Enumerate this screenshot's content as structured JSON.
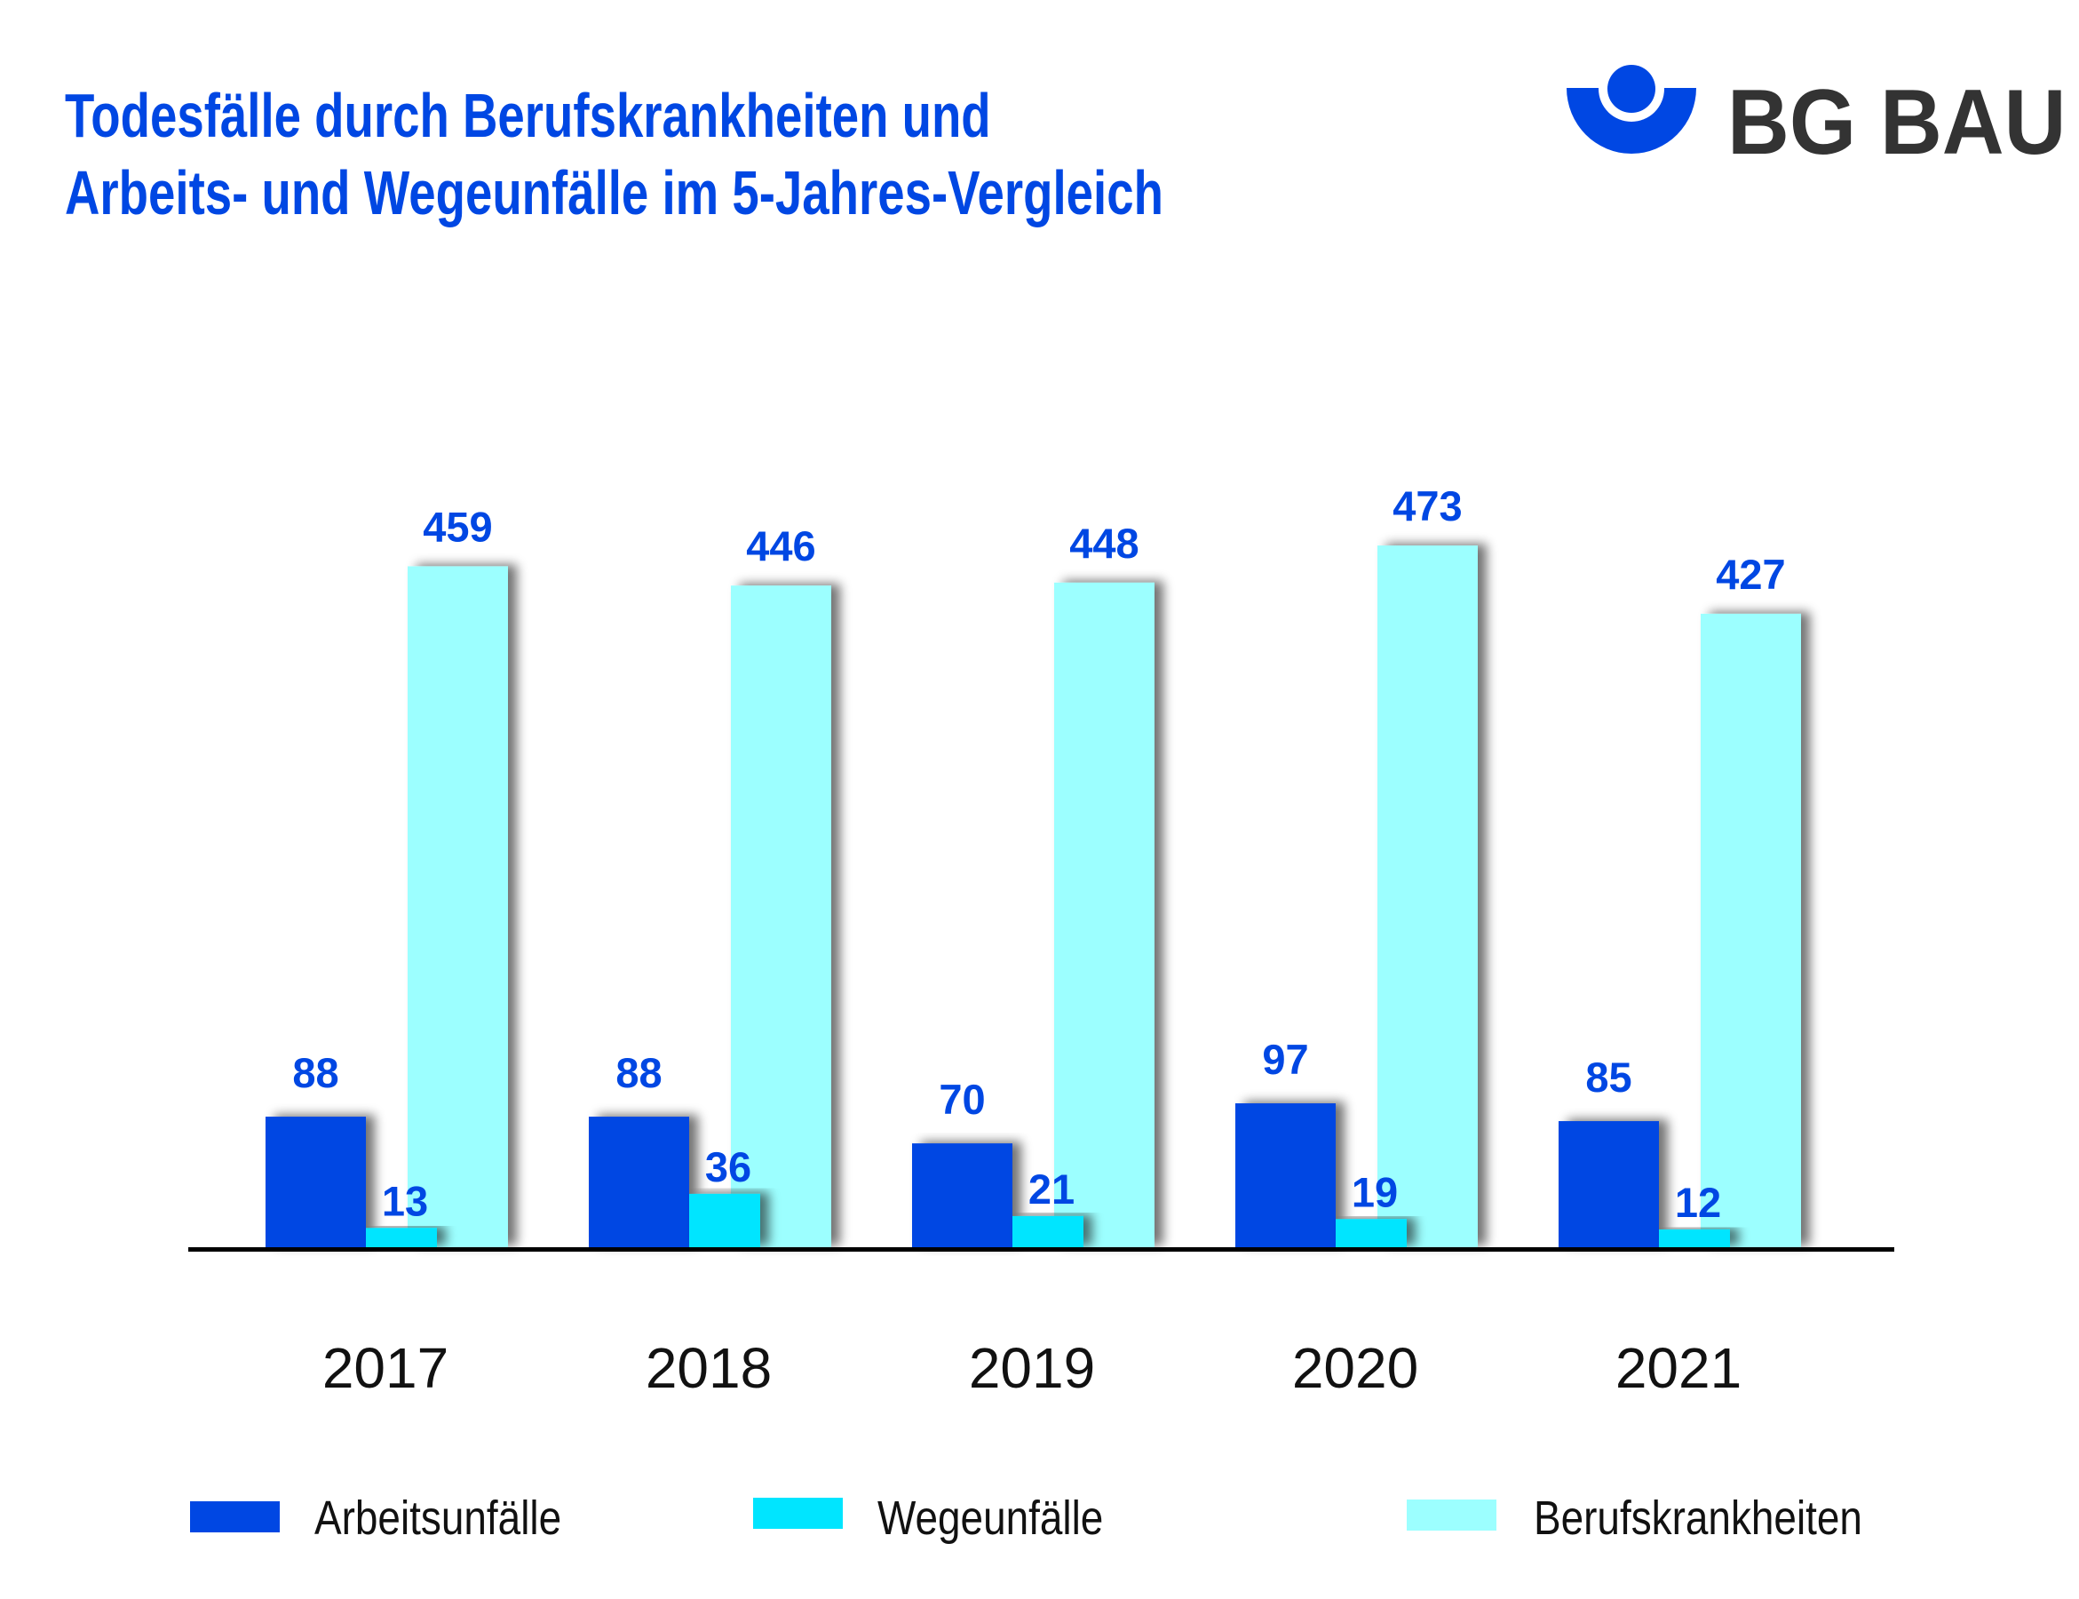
{
  "header": {
    "title_line1": "Todesfälle durch Berufskrankheiten und",
    "title_line2": "Arbeits- und Wegeunfälle im 5-Jahres-Vergleich",
    "logo_text": "BG BAU",
    "logo_icon": "bg-bau-logo-icon"
  },
  "colors": {
    "title": "#0047E3",
    "arbeitsunfaelle": "#0047E3",
    "wegeunfaelle": "#00E5FF",
    "berufskrankheiten": "#9CFFFF",
    "logo_text": "#333333"
  },
  "legend": {
    "items": [
      {
        "label": "Arbeitsunfälle",
        "color": "#0047E3"
      },
      {
        "label": "Wegeunfälle",
        "color": "#00E5FF"
      },
      {
        "label": "Berufskrankheiten",
        "color": "#9CFFFF"
      }
    ]
  },
  "chart_data": {
    "type": "bar",
    "title": "Todesfälle durch Berufskrankheiten und Arbeits- und Wegeunfälle im 5-Jahres-Vergleich",
    "xlabel": "",
    "ylabel": "",
    "categories": [
      "2017",
      "2018",
      "2019",
      "2020",
      "2021"
    ],
    "series": [
      {
        "name": "Arbeitsunfälle",
        "color": "#0047E3",
        "values": [
          88,
          88,
          70,
          97,
          85
        ]
      },
      {
        "name": "Wegeunfälle",
        "color": "#00E5FF",
        "values": [
          13,
          36,
          21,
          19,
          12
        ]
      },
      {
        "name": "Berufskrankheiten",
        "color": "#9CFFFF",
        "values": [
          459,
          446,
          448,
          473,
          427
        ]
      }
    ],
    "ylim": [
      0,
      473
    ],
    "grid": false,
    "data_labels": true,
    "legend_position": "bottom"
  }
}
